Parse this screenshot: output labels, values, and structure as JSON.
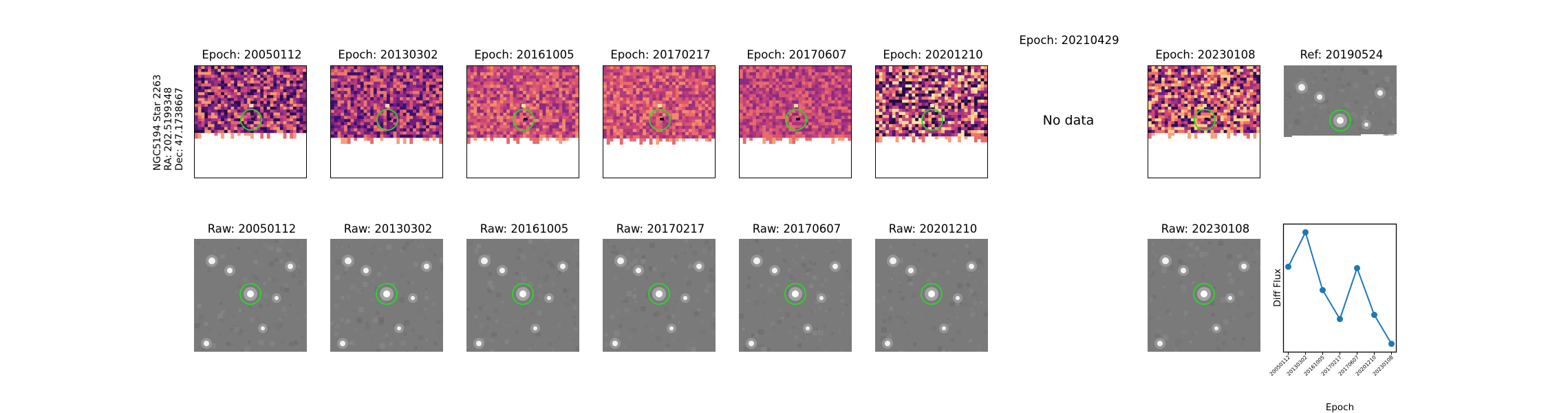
{
  "star_info": {
    "name": "NGC5194 Star 2263",
    "ra": "RA: 202.5199348",
    "dec": "Dec: 47.1738667"
  },
  "diff_titles": [
    "Epoch: 20050112",
    "Epoch: 20130302",
    "Epoch: 20161005",
    "Epoch: 20170217",
    "Epoch: 20170607",
    "Epoch: 20201210",
    "Epoch: 20210429",
    "Epoch: 20230108"
  ],
  "ref_title": "Ref: 20190524",
  "no_data_text": "No data",
  "raw_titles": [
    "Raw: 20050112",
    "Raw: 20130302",
    "Raw: 20161005",
    "Raw: 20170217",
    "Raw: 20170607",
    "Raw: 20201210",
    "Raw: 20230108"
  ],
  "colors": {
    "circle": "#22dd22",
    "line": "#1f77b4",
    "diff_base": "#b23a7a",
    "raw_bg": "#7a7a7a"
  },
  "chart_data": {
    "type": "line",
    "x": [
      "20050112",
      "20130302",
      "20161005",
      "20170217",
      "20170607",
      "20201210",
      "20230108"
    ],
    "values": [
      0.72,
      0.97,
      0.55,
      0.34,
      0.71,
      0.37,
      0.16
    ],
    "xlabel": "Epoch",
    "ylabel": "Diff Flux",
    "ylim": [
      0.1,
      1.03
    ],
    "yticks_shown": false
  }
}
